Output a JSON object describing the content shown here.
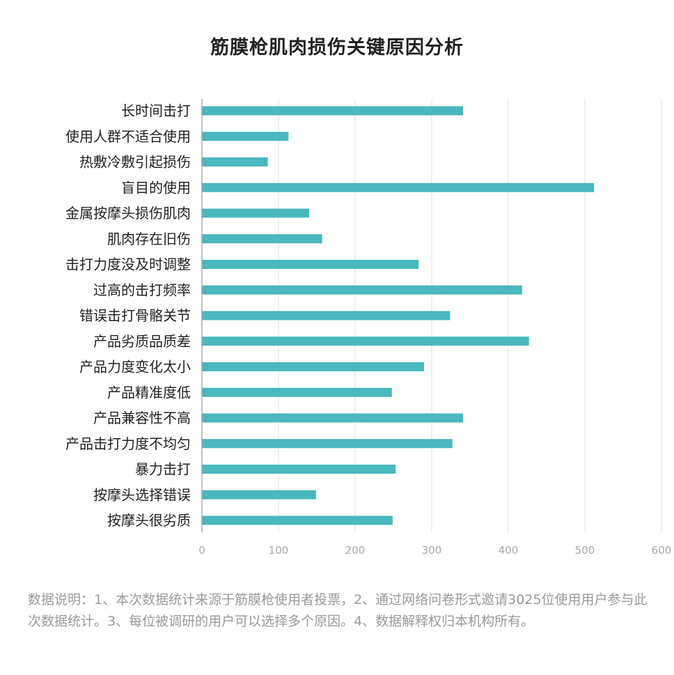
{
  "title": "筋膜枪肌肉损伤关键原因分析",
  "note": "数据说明：1、本次数据统计来源于筋膜枪使用者投票，2、通过网络问卷形式邀请3025位使用用户参与此次数据统计。3、每位被调研的用户可以选择多个原因。4、数据解释权归本机构所有。",
  "chart_data": {
    "type": "bar",
    "orientation": "horizontal",
    "title": "筋膜枪肌肉损伤关键原因分析",
    "categories": [
      "长时间击打",
      "使用人群不适合使用",
      "热敷冷敷引起损伤",
      "盲目的使用",
      "金属按摩头损伤肌肉",
      "肌肉存在旧伤",
      "击打力度没及时调整",
      "过高的击打频率",
      "错误击打骨骼关节",
      "产品劣质品质差",
      "产品力度变化太小",
      "产品精准度低",
      "产品兼容性不高",
      "产品击打力度不均匀",
      "暴力击打",
      "按摩头选择错误",
      "按摩头很劣质"
    ],
    "values": [
      341,
      113,
      86,
      512,
      140,
      157,
      283,
      418,
      324,
      427,
      290,
      248,
      341,
      327,
      253,
      149,
      249
    ],
    "xlim": [
      0,
      600
    ],
    "xticks": [
      0,
      100,
      200,
      300,
      400,
      500,
      600
    ],
    "grid": true,
    "bar_color": "#4ab8be",
    "grid_color": "#e3e3e3"
  }
}
